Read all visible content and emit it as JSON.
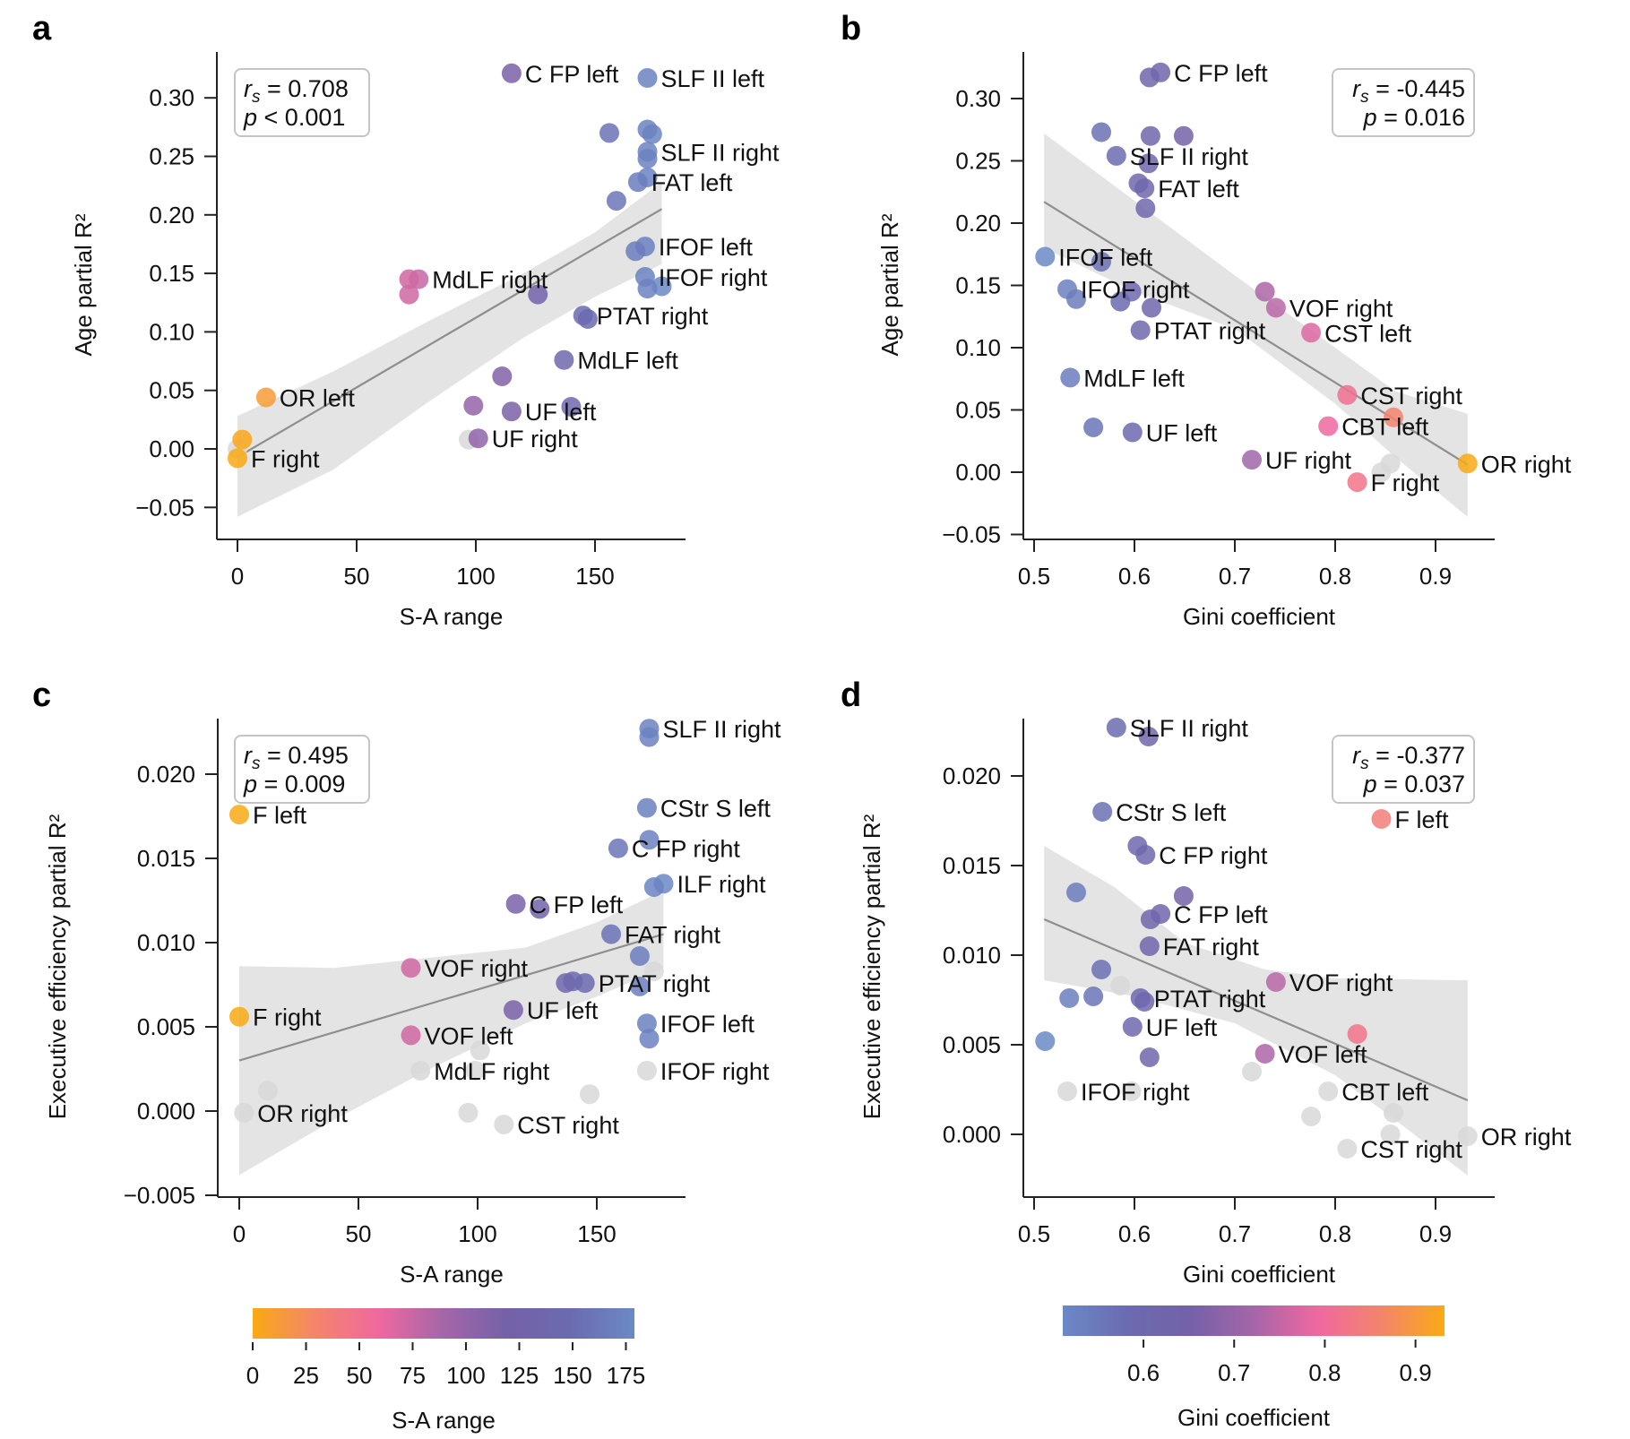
{
  "chart_data": [
    {
      "panel": "a",
      "type": "scatter",
      "xlabel": "S-A range",
      "ylabel": "Age partial R²",
      "xlim": [
        -9,
        186
      ],
      "ylim": [
        -0.076,
        0.343
      ],
      "xticks": [
        0,
        50,
        100,
        150
      ],
      "xtick_labels": [
        "0",
        "50",
        "100",
        "150"
      ],
      "yticks": [
        -0.05,
        0.0,
        0.05,
        0.1,
        0.15,
        0.2,
        0.25,
        0.3
      ],
      "ytick_labels": [
        "−0.05",
        "0.00",
        "0.05",
        "0.10",
        "0.15",
        "0.20",
        "0.25",
        "0.30"
      ],
      "color_by": "x",
      "stat": {
        "line1_sym": "r",
        "line1_sub": "s",
        "line1_val": " = 0.708",
        "line2_sym": "p",
        "line2_val": " < 0.001",
        "position": "top-left"
      },
      "fit": {
        "x0": 0,
        "y0": -0.007,
        "x1": 178,
        "y1": 0.205
      },
      "ci": {
        "upper": [
          [
            0,
            0.028
          ],
          [
            40,
            0.066
          ],
          [
            80,
            0.109
          ],
          [
            120,
            0.15
          ],
          [
            150,
            0.185
          ],
          [
            178,
            0.228
          ]
        ],
        "lower": [
          [
            0,
            -0.058
          ],
          [
            40,
            -0.018
          ],
          [
            80,
            0.04
          ],
          [
            120,
            0.095
          ],
          [
            150,
            0.13
          ],
          [
            178,
            0.158
          ]
        ]
      },
      "points": [
        {
          "x": 115,
          "y": 0.321,
          "label": "C FP left"
        },
        {
          "x": 172,
          "y": 0.317,
          "label": "SLF II left"
        },
        {
          "x": 156,
          "y": 0.27
        },
        {
          "x": 174,
          "y": 0.269
        },
        {
          "x": 172,
          "y": 0.273
        },
        {
          "x": 172,
          "y": 0.254,
          "label": "SLF II right"
        },
        {
          "x": 172,
          "y": 0.248
        },
        {
          "x": 172,
          "y": 0.232
        },
        {
          "x": 168,
          "y": 0.228,
          "label": "FAT left"
        },
        {
          "x": 159,
          "y": 0.212
        },
        {
          "x": 171,
          "y": 0.173,
          "label": "IFOF left"
        },
        {
          "x": 167,
          "y": 0.169
        },
        {
          "x": 171,
          "y": 0.147,
          "label": "IFOF right"
        },
        {
          "x": 178,
          "y": 0.139
        },
        {
          "x": 172,
          "y": 0.137
        },
        {
          "x": 76,
          "y": 0.145,
          "label": "MdLF right"
        },
        {
          "x": 72,
          "y": 0.145
        },
        {
          "x": 72,
          "y": 0.132
        },
        {
          "x": 126,
          "y": 0.132
        },
        {
          "x": 145,
          "y": 0.114,
          "label": "PTAT right"
        },
        {
          "x": 147,
          "y": 0.111
        },
        {
          "x": 137,
          "y": 0.076,
          "label": "MdLF left"
        },
        {
          "x": 111,
          "y": 0.062
        },
        {
          "x": 12,
          "y": 0.044,
          "label": "OR left"
        },
        {
          "x": 99,
          "y": 0.037
        },
        {
          "x": 140,
          "y": 0.036
        },
        {
          "x": 115,
          "y": 0.032,
          "label": "UF left"
        },
        {
          "x": 97,
          "y": 0.008,
          "gray": true
        },
        {
          "x": 101,
          "y": 0.009,
          "label": "UF right"
        },
        {
          "x": 0,
          "y": 0.0,
          "gray": true
        },
        {
          "x": 2,
          "y": 0.008
        },
        {
          "x": 0,
          "y": -0.008,
          "label": "F right"
        }
      ]
    },
    {
      "panel": "b",
      "type": "scatter",
      "xlabel": "Gini coefficient",
      "ylabel": "Age partial R²",
      "xlim": [
        0.489,
        0.957
      ],
      "ylim": [
        -0.054,
        0.343
      ],
      "xticks": [
        0.5,
        0.6,
        0.7,
        0.8,
        0.9
      ],
      "xtick_labels": [
        "0.5",
        "0.6",
        "0.7",
        "0.8",
        "0.9"
      ],
      "yticks": [
        -0.05,
        0.0,
        0.05,
        0.1,
        0.15,
        0.2,
        0.25,
        0.3
      ],
      "ytick_labels": [
        "−0.05",
        "0.00",
        "0.05",
        "0.10",
        "0.15",
        "0.20",
        "0.25",
        "0.30"
      ],
      "color_by": "x",
      "stat": {
        "line1_sym": "r",
        "line1_sub": "s",
        "line1_val": " = -0.445",
        "line2_sym": "p",
        "line2_val": " = 0.016",
        "position": "top-right"
      },
      "fit": {
        "x0": 0.51,
        "y0": 0.217,
        "x1": 0.932,
        "y1": 0.006
      },
      "ci": {
        "upper": [
          [
            0.51,
            0.272
          ],
          [
            0.6,
            0.218
          ],
          [
            0.7,
            0.158
          ],
          [
            0.8,
            0.1
          ],
          [
            0.86,
            0.065
          ],
          [
            0.932,
            0.047
          ]
        ],
        "lower": [
          [
            0.51,
            0.18
          ],
          [
            0.6,
            0.145
          ],
          [
            0.7,
            0.115
          ],
          [
            0.8,
            0.055
          ],
          [
            0.86,
            0.012
          ],
          [
            0.932,
            -0.036
          ]
        ]
      },
      "points": [
        {
          "x": 0.626,
          "y": 0.321,
          "label": "C FP left"
        },
        {
          "x": 0.615,
          "y": 0.317
        },
        {
          "x": 0.567,
          "y": 0.273
        },
        {
          "x": 0.616,
          "y": 0.27
        },
        {
          "x": 0.649,
          "y": 0.27
        },
        {
          "x": 0.582,
          "y": 0.254,
          "label": "SLF II right"
        },
        {
          "x": 0.614,
          "y": 0.248
        },
        {
          "x": 0.604,
          "y": 0.232
        },
        {
          "x": 0.61,
          "y": 0.228,
          "label": "FAT left"
        },
        {
          "x": 0.611,
          "y": 0.212
        },
        {
          "x": 0.511,
          "y": 0.173,
          "label": "IFOF left"
        },
        {
          "x": 0.567,
          "y": 0.169
        },
        {
          "x": 0.533,
          "y": 0.147,
          "label": "IFOF right"
        },
        {
          "x": 0.542,
          "y": 0.139
        },
        {
          "x": 0.597,
          "y": 0.145
        },
        {
          "x": 0.586,
          "y": 0.137
        },
        {
          "x": 0.617,
          "y": 0.132
        },
        {
          "x": 0.73,
          "y": 0.145
        },
        {
          "x": 0.741,
          "y": 0.132,
          "label": "VOF right"
        },
        {
          "x": 0.606,
          "y": 0.114,
          "label": "PTAT right"
        },
        {
          "x": 0.776,
          "y": 0.112,
          "label": "CST left"
        },
        {
          "x": 0.536,
          "y": 0.076,
          "label": "MdLF left"
        },
        {
          "x": 0.812,
          "y": 0.062,
          "label": "CST right"
        },
        {
          "x": 0.858,
          "y": 0.044
        },
        {
          "x": 0.793,
          "y": 0.037,
          "label": "CBT left"
        },
        {
          "x": 0.559,
          "y": 0.036
        },
        {
          "x": 0.598,
          "y": 0.032,
          "label": "UF left"
        },
        {
          "x": 0.717,
          "y": 0.01,
          "label": "UF right"
        },
        {
          "x": 0.855,
          "y": 0.007,
          "gray": true
        },
        {
          "x": 0.846,
          "y": 0.0,
          "gray": true
        },
        {
          "x": 0.932,
          "y": 0.007,
          "label": "OR right"
        },
        {
          "x": 0.822,
          "y": -0.008,
          "label": "F right"
        }
      ]
    },
    {
      "panel": "c",
      "type": "scatter",
      "xlabel": "S-A range",
      "ylabel": "Executive efficiency partial R²",
      "xlim": [
        -9,
        186
      ],
      "ylim": [
        -0.0055,
        0.0243
      ],
      "xticks": [
        0,
        50,
        100,
        150
      ],
      "xtick_labels": [
        "0",
        "50",
        "100",
        "150"
      ],
      "yticks": [
        -0.005,
        0.0,
        0.005,
        0.01,
        0.015,
        0.02
      ],
      "ytick_labels": [
        "−0.005",
        "0.000",
        "0.005",
        "0.010",
        "0.015",
        "0.020"
      ],
      "color_by": "x",
      "stat": {
        "line1_sym": "r",
        "line1_sub": "s",
        "line1_val": " = 0.495",
        "line2_sym": "p",
        "line2_val": " = 0.009",
        "position": "top-left"
      },
      "fit": {
        "x0": 0,
        "y0": 0.003,
        "x1": 178,
        "y1": 0.0105
      },
      "ci": {
        "upper": [
          [
            0,
            0.0086
          ],
          [
            40,
            0.0085
          ],
          [
            80,
            0.0091
          ],
          [
            120,
            0.0097
          ],
          [
            150,
            0.0112
          ],
          [
            178,
            0.0131
          ]
        ],
        "lower": [
          [
            0,
            -0.0038
          ],
          [
            40,
            -0.0005
          ],
          [
            80,
            0.0025
          ],
          [
            120,
            0.0052
          ],
          [
            150,
            0.0068
          ],
          [
            178,
            0.0085
          ]
        ]
      },
      "points": [
        {
          "x": 172,
          "y": 0.0227,
          "label": "SLF II right"
        },
        {
          "x": 172,
          "y": 0.0222
        },
        {
          "x": 0,
          "y": 0.0176,
          "label": "F left"
        },
        {
          "x": 171,
          "y": 0.018,
          "label": "CStr S left"
        },
        {
          "x": 172,
          "y": 0.0161
        },
        {
          "x": 159,
          "y": 0.0156,
          "label": "C FP right"
        },
        {
          "x": 178,
          "y": 0.0135,
          "label": "ILF right"
        },
        {
          "x": 174,
          "y": 0.0133
        },
        {
          "x": 116,
          "y": 0.0123,
          "label": "C FP left"
        },
        {
          "x": 126,
          "y": 0.012
        },
        {
          "x": 156,
          "y": 0.0105,
          "label": "FAT right"
        },
        {
          "x": 168,
          "y": 0.0092
        },
        {
          "x": 174,
          "y": 0.0083,
          "gray": true
        },
        {
          "x": 72,
          "y": 0.0085,
          "label": "VOF right"
        },
        {
          "x": 137,
          "y": 0.0076
        },
        {
          "x": 140,
          "y": 0.0077
        },
        {
          "x": 145,
          "y": 0.0076,
          "label": "PTAT right"
        },
        {
          "x": 168,
          "y": 0.0074
        },
        {
          "x": 0,
          "y": 0.0056,
          "label": "F right"
        },
        {
          "x": 115,
          "y": 0.006,
          "label": "UF left"
        },
        {
          "x": 171,
          "y": 0.0052,
          "label": "IFOF left"
        },
        {
          "x": 172,
          "y": 0.0043
        },
        {
          "x": 72,
          "y": 0.0045,
          "label": "VOF left"
        },
        {
          "x": 101,
          "y": 0.0036,
          "gray": true
        },
        {
          "x": 76,
          "y": 0.0024,
          "gray": true,
          "label": "MdLF right"
        },
        {
          "x": 99,
          "y": 0.0024,
          "gray": true
        },
        {
          "x": 171,
          "y": 0.0024,
          "gray": true,
          "label": "IFOF right"
        },
        {
          "x": 12,
          "y": 0.0012,
          "gray": true
        },
        {
          "x": 147,
          "y": 0.001,
          "gray": true
        },
        {
          "x": 2,
          "y": -0.0001,
          "gray": true,
          "label": "OR right"
        },
        {
          "x": 96,
          "y": -0.0001,
          "gray": true
        },
        {
          "x": 111,
          "y": -0.0008,
          "gray": true,
          "label": "CST right"
        }
      ]
    },
    {
      "panel": "d",
      "type": "scatter",
      "xlabel": "Gini coefficient",
      "ylabel": "Executive efficiency partial R²",
      "xlim": [
        0.489,
        0.957
      ],
      "ylim": [
        -0.0035,
        0.0243
      ],
      "xticks": [
        0.5,
        0.6,
        0.7,
        0.8,
        0.9
      ],
      "xtick_labels": [
        "0.5",
        "0.6",
        "0.7",
        "0.8",
        "0.9"
      ],
      "yticks": [
        0.0,
        0.005,
        0.01,
        0.015,
        0.02
      ],
      "ytick_labels": [
        "0.000",
        "0.005",
        "0.010",
        "0.015",
        "0.020"
      ],
      "color_by": "x",
      "stat": {
        "line1_sym": "r",
        "line1_sub": "s",
        "line1_val": " = -0.377",
        "line2_sym": "p",
        "line2_val": " = 0.037",
        "position": "top-right"
      },
      "fit": {
        "x0": 0.51,
        "y0": 0.012,
        "x1": 0.932,
        "y1": 0.0019
      },
      "ci": {
        "upper": [
          [
            0.51,
            0.0161
          ],
          [
            0.58,
            0.0138
          ],
          [
            0.65,
            0.0107
          ],
          [
            0.73,
            0.0092
          ],
          [
            0.8,
            0.0087
          ],
          [
            0.932,
            0.0086
          ]
        ],
        "lower": [
          [
            0.51,
            0.0086
          ],
          [
            0.6,
            0.0077
          ],
          [
            0.7,
            0.0062
          ],
          [
            0.8,
            0.0033
          ],
          [
            0.86,
            0.0008
          ],
          [
            0.932,
            -0.0023
          ]
        ]
      },
      "points": [
        {
          "x": 0.582,
          "y": 0.0227,
          "label": "SLF II right"
        },
        {
          "x": 0.614,
          "y": 0.0222
        },
        {
          "x": 0.568,
          "y": 0.018,
          "label": "CStr S left"
        },
        {
          "x": 0.846,
          "y": 0.0176,
          "label": "F left"
        },
        {
          "x": 0.603,
          "y": 0.0161
        },
        {
          "x": 0.611,
          "y": 0.0156,
          "label": "C FP right"
        },
        {
          "x": 0.542,
          "y": 0.0135
        },
        {
          "x": 0.649,
          "y": 0.0133
        },
        {
          "x": 0.626,
          "y": 0.0123,
          "label": "C FP left"
        },
        {
          "x": 0.616,
          "y": 0.012
        },
        {
          "x": 0.615,
          "y": 0.0105,
          "label": "FAT right"
        },
        {
          "x": 0.567,
          "y": 0.0092
        },
        {
          "x": 0.586,
          "y": 0.0083,
          "gray": true
        },
        {
          "x": 0.741,
          "y": 0.0085,
          "label": "VOF right"
        },
        {
          "x": 0.535,
          "y": 0.0076
        },
        {
          "x": 0.559,
          "y": 0.0077
        },
        {
          "x": 0.606,
          "y": 0.0076,
          "label": "PTAT right"
        },
        {
          "x": 0.61,
          "y": 0.0074
        },
        {
          "x": 0.598,
          "y": 0.006,
          "label": "UF left"
        },
        {
          "x": 0.822,
          "y": 0.0056
        },
        {
          "x": 0.511,
          "y": 0.0052
        },
        {
          "x": 0.73,
          "y": 0.0045,
          "label": "VOF left"
        },
        {
          "x": 0.615,
          "y": 0.0043
        },
        {
          "x": 0.717,
          "y": 0.0035,
          "gray": true
        },
        {
          "x": 0.533,
          "y": 0.0024,
          "gray": true,
          "label": "IFOF right"
        },
        {
          "x": 0.597,
          "y": 0.0024,
          "gray": true
        },
        {
          "x": 0.793,
          "y": 0.0024,
          "gray": true,
          "label": "CBT left"
        },
        {
          "x": 0.858,
          "y": 0.0012,
          "gray": true
        },
        {
          "x": 0.776,
          "y": 0.001,
          "gray": true
        },
        {
          "x": 0.855,
          "y": 0.0,
          "gray": true
        },
        {
          "x": 0.932,
          "y": -0.0001,
          "gray": true,
          "label": "OR right"
        },
        {
          "x": 0.812,
          "y": -0.0008,
          "gray": true,
          "label": "CST right"
        }
      ]
    }
  ],
  "colorbars": [
    {
      "name": "sa-range-colorbar",
      "title": "S-A range",
      "range": [
        0,
        179
      ],
      "ticks": [
        0,
        25,
        50,
        75,
        100,
        125,
        150,
        175
      ],
      "tick_labels": [
        "0",
        "25",
        "50",
        "75",
        "100",
        "125",
        "150",
        "175"
      ],
      "stops": [
        "#f9aa14",
        "#f4846c",
        "#ef68a0",
        "#a466a8",
        "#7461a8",
        "#6b6bb0",
        "#6b89c6"
      ]
    },
    {
      "name": "gini-colorbar",
      "title": "Gini coefficient",
      "range": [
        0.511,
        0.932
      ],
      "ticks": [
        0.6,
        0.7,
        0.8,
        0.9
      ],
      "tick_labels": [
        "0.6",
        "0.7",
        "0.8",
        "0.9"
      ],
      "stops": [
        "#6b89c6",
        "#6b6bb0",
        "#7461a8",
        "#a466a8",
        "#ef68a0",
        "#f4846c",
        "#f9aa14"
      ]
    }
  ],
  "panel_letters": [
    "a",
    "b",
    "c",
    "d"
  ],
  "gray_color": "#d8d8d8"
}
